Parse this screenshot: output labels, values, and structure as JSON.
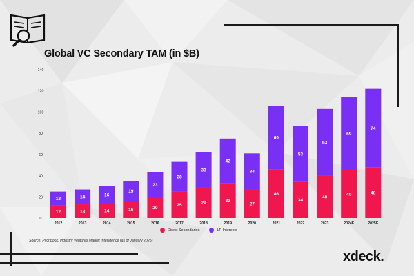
{
  "title": "Global VC Secondary TAM (in $B)",
  "source": "Source: Pitchbook, Industry Ventures Market Intelligence (as of January 2025)",
  "brand": "xdeck.",
  "colors": {
    "direct": "#f0174f",
    "lp": "#7a2ff5",
    "bar_label": "#ffffff"
  },
  "chart_data": {
    "type": "bar",
    "stacked": true,
    "categories": [
      "2012",
      "2013",
      "2014",
      "2015",
      "2016",
      "2017",
      "2018",
      "2019",
      "2020",
      "2021",
      "2022",
      "2023",
      "2024E",
      "2025E"
    ],
    "series": [
      {
        "name": "Direct Secondaries",
        "values": [
          12,
          13,
          14,
          16,
          20,
          25,
          29,
          33,
          27,
          46,
          34,
          40,
          45,
          48
        ]
      },
      {
        "name": "LP Interests",
        "values": [
          13,
          14,
          16,
          19,
          23,
          28,
          33,
          42,
          34,
          60,
          53,
          63,
          69,
          74
        ]
      }
    ],
    "y_ticks": [
      0,
      20,
      40,
      60,
      80,
      100,
      120,
      140
    ],
    "ylim": [
      0,
      140
    ],
    "grid": false,
    "legend_position": "bottom-center"
  }
}
